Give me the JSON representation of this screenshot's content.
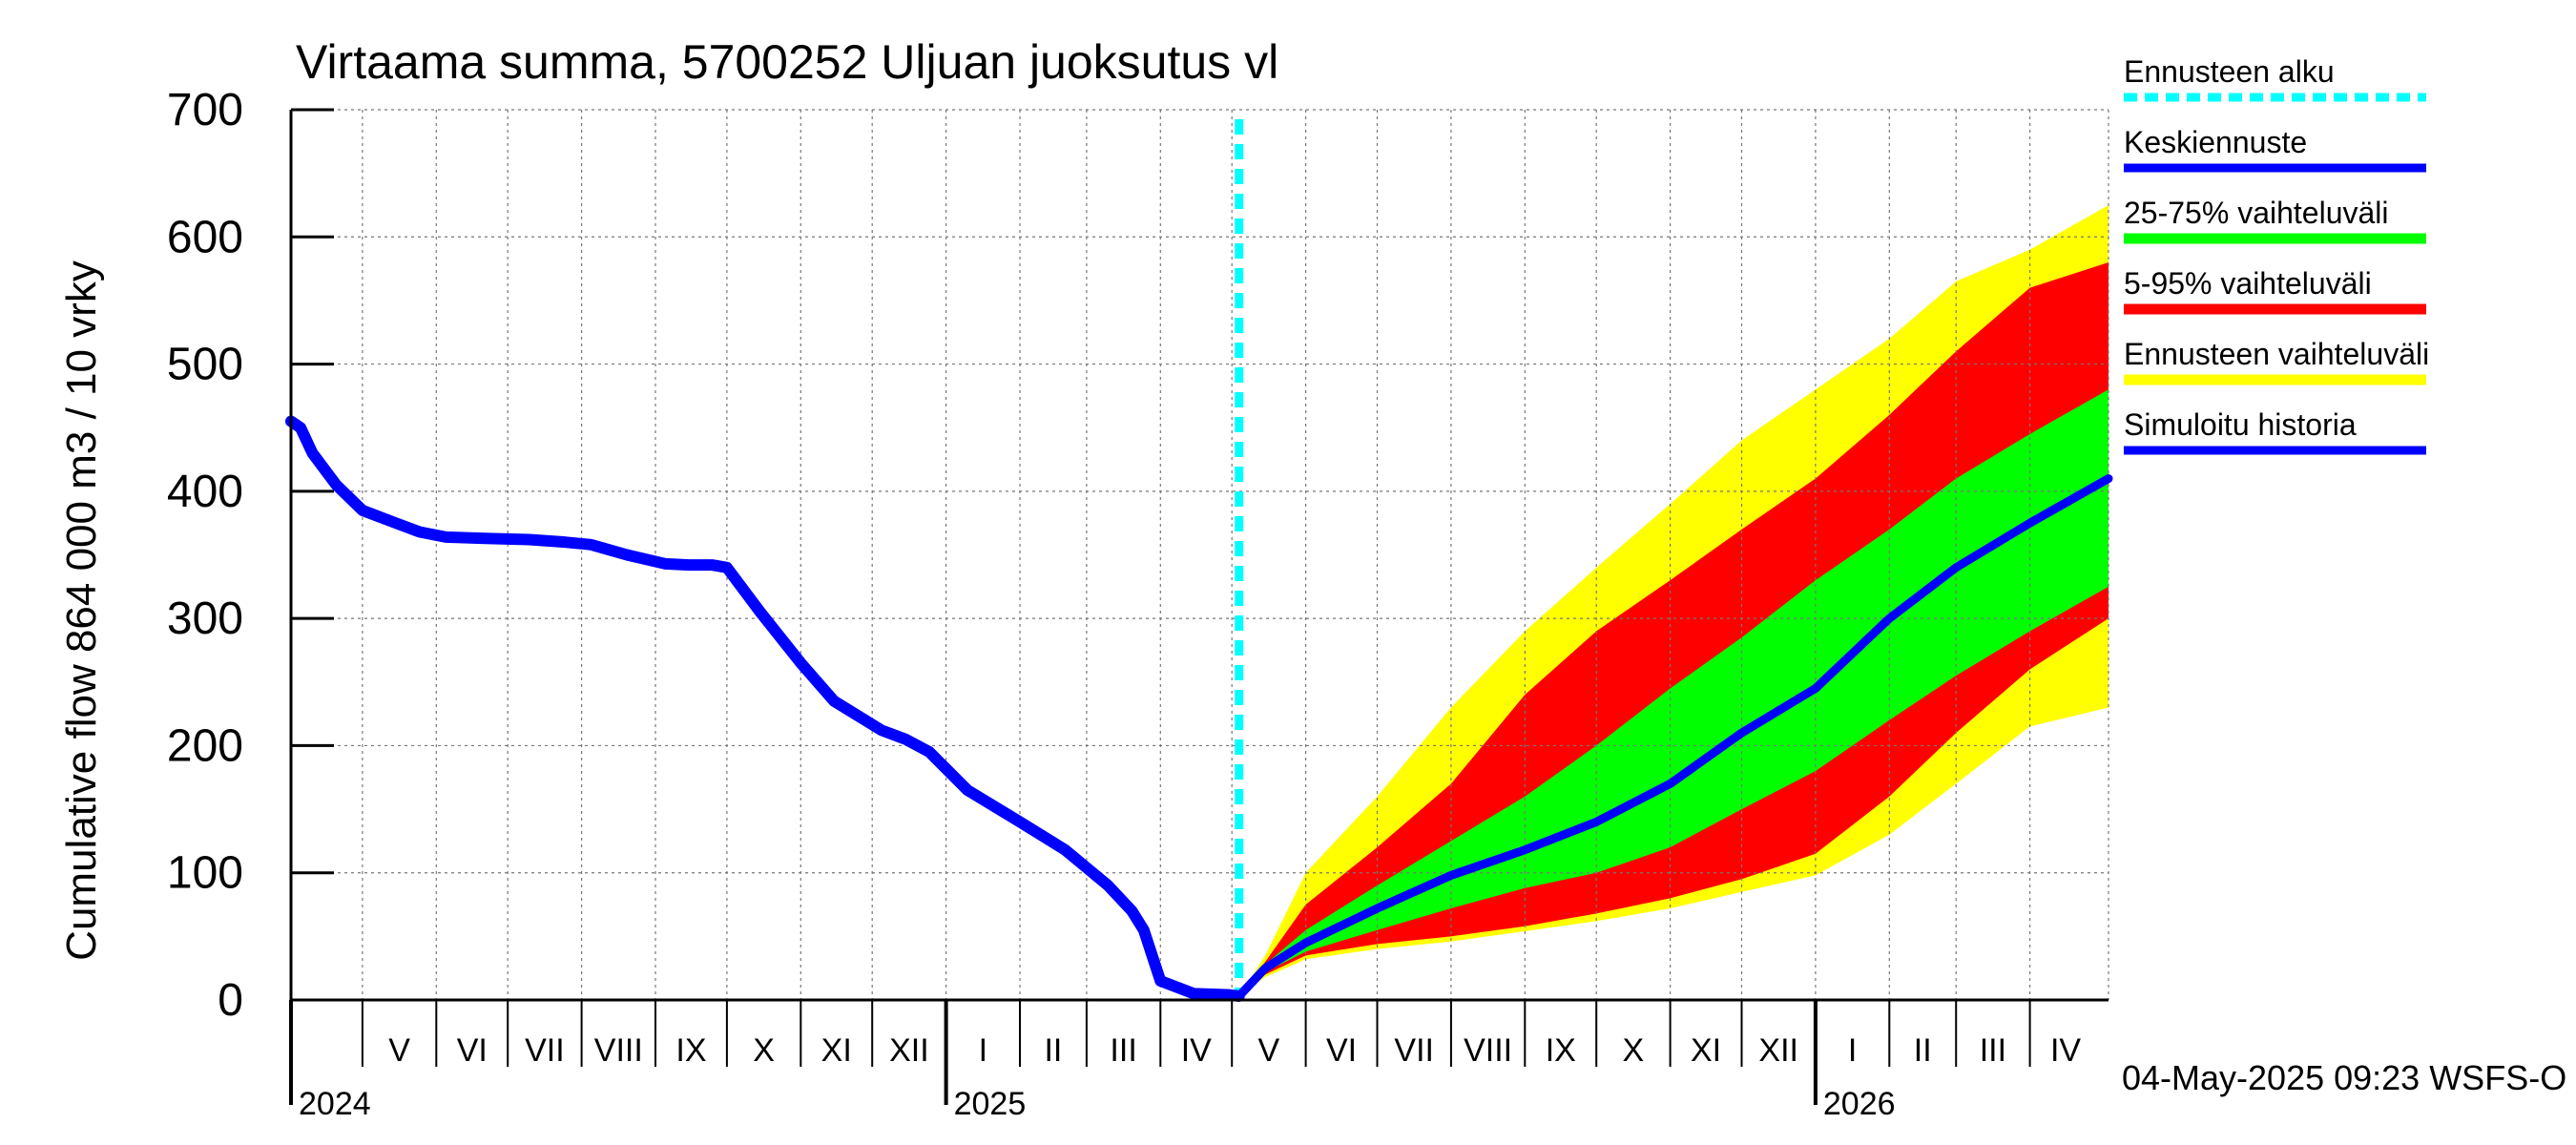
{
  "chart_data": {
    "type": "area",
    "title": "Virtaama summa, 5700252 Uljuan juoksutus vl",
    "ylabel": "Cumulative flow    864 000 m3 / 10 vrky",
    "ylim": [
      0,
      700
    ],
    "yticks": [
      0,
      100,
      200,
      300,
      400,
      500,
      600,
      700
    ],
    "xlim": [
      "2024-04-01",
      "2026-05-04"
    ],
    "grid": true,
    "months": [
      {
        "label": "V",
        "start": "2024-05-01",
        "end": "2024-06-01"
      },
      {
        "label": "VI",
        "start": "2024-06-01",
        "end": "2024-07-01"
      },
      {
        "label": "VII",
        "start": "2024-07-01",
        "end": "2024-08-01"
      },
      {
        "label": "VIII",
        "start": "2024-08-01",
        "end": "2024-09-01"
      },
      {
        "label": "IX",
        "start": "2024-09-01",
        "end": "2024-10-01"
      },
      {
        "label": "X",
        "start": "2024-10-01",
        "end": "2024-11-01"
      },
      {
        "label": "XI",
        "start": "2024-11-01",
        "end": "2024-12-01"
      },
      {
        "label": "XII",
        "start": "2024-12-01",
        "end": "2025-01-01"
      },
      {
        "label": "I",
        "start": "2025-01-01",
        "end": "2025-02-01"
      },
      {
        "label": "II",
        "start": "2025-02-01",
        "end": "2025-03-01"
      },
      {
        "label": "III",
        "start": "2025-03-01",
        "end": "2025-04-01"
      },
      {
        "label": "IV",
        "start": "2025-04-01",
        "end": "2025-05-01"
      },
      {
        "label": "V",
        "start": "2025-05-01",
        "end": "2025-06-01"
      },
      {
        "label": "VI",
        "start": "2025-06-01",
        "end": "2025-07-01"
      },
      {
        "label": "VII",
        "start": "2025-07-01",
        "end": "2025-08-01"
      },
      {
        "label": "VIII",
        "start": "2025-08-01",
        "end": "2025-09-01"
      },
      {
        "label": "IX",
        "start": "2025-09-01",
        "end": "2025-10-01"
      },
      {
        "label": "X",
        "start": "2025-10-01",
        "end": "2025-11-01"
      },
      {
        "label": "XI",
        "start": "2025-11-01",
        "end": "2025-12-01"
      },
      {
        "label": "XII",
        "start": "2025-12-01",
        "end": "2026-01-01"
      },
      {
        "label": "I",
        "start": "2026-01-01",
        "end": "2026-02-01"
      },
      {
        "label": "II",
        "start": "2026-02-01",
        "end": "2026-03-01"
      },
      {
        "label": "III",
        "start": "2026-03-01",
        "end": "2026-04-01"
      },
      {
        "label": "IV",
        "start": "2026-04-01",
        "end": "2026-05-01"
      }
    ],
    "years": [
      {
        "label": "2024",
        "date": "2024-04-01"
      },
      {
        "label": "2025",
        "date": "2025-01-01"
      },
      {
        "label": "2026",
        "date": "2026-01-01"
      }
    ],
    "forecast_start": "2025-05-04",
    "legend_position": "right",
    "legend": [
      {
        "key": "start",
        "label": "Ennusteen alku",
        "color": "#00ffff",
        "style": "dashed"
      },
      {
        "key": "mean",
        "label": "Keskiennuste",
        "color": "#0000ff",
        "style": "line"
      },
      {
        "key": "p25_75",
        "label": "25-75% vaihteluväli",
        "color": "#00ff00",
        "style": "band"
      },
      {
        "key": "p5_95",
        "label": "5-95% vaihteluväli",
        "color": "#ff0000",
        "style": "band"
      },
      {
        "key": "range",
        "label": "Ennusteen vaihteluväli",
        "color": "#ffff00",
        "style": "band"
      },
      {
        "key": "history",
        "label": "Simuloitu historia",
        "color": "#0000ff",
        "style": "line"
      }
    ],
    "footer": "04-May-2025 09:23 WSFS-O",
    "history": {
      "x": [
        "2024-04-01",
        "2024-04-05",
        "2024-04-10",
        "2024-04-20",
        "2024-05-01",
        "2024-05-15",
        "2024-05-25",
        "2024-06-05",
        "2024-06-20",
        "2024-07-10",
        "2024-07-25",
        "2024-08-05",
        "2024-08-20",
        "2024-09-05",
        "2024-09-15",
        "2024-09-25",
        "2024-10-01",
        "2024-10-15",
        "2024-11-01",
        "2024-11-15",
        "2024-12-05",
        "2024-12-15",
        "2024-12-25",
        "2025-01-10",
        "2025-02-01",
        "2025-02-20",
        "2025-03-10",
        "2025-03-20",
        "2025-03-25",
        "2025-04-01",
        "2025-04-15",
        "2025-04-30",
        "2025-05-04"
      ],
      "y": [
        455,
        450,
        430,
        405,
        385,
        375,
        368,
        364,
        363,
        362,
        360,
        358,
        350,
        343,
        342,
        342,
        340,
        305,
        265,
        235,
        212,
        205,
        195,
        165,
        140,
        118,
        90,
        70,
        55,
        15,
        5,
        4,
        3
      ]
    },
    "forecast": {
      "x": [
        "2025-05-04",
        "2025-05-15",
        "2025-06-01",
        "2025-07-01",
        "2025-08-01",
        "2025-09-01",
        "2025-10-01",
        "2025-11-01",
        "2025-12-01",
        "2026-01-01",
        "2026-02-01",
        "2026-03-01",
        "2026-04-01",
        "2026-05-04"
      ],
      "mean": [
        3,
        25,
        45,
        72,
        98,
        118,
        140,
        170,
        210,
        245,
        300,
        340,
        375,
        410
      ],
      "p25": [
        3,
        22,
        38,
        55,
        72,
        88,
        100,
        120,
        150,
        180,
        220,
        255,
        290,
        325
      ],
      "p75": [
        3,
        28,
        55,
        90,
        125,
        160,
        200,
        245,
        285,
        330,
        370,
        410,
        445,
        480
      ],
      "p5": [
        3,
        20,
        35,
        44,
        50,
        58,
        68,
        80,
        95,
        115,
        160,
        210,
        260,
        300
      ],
      "p95": [
        3,
        30,
        75,
        120,
        170,
        240,
        290,
        330,
        370,
        410,
        460,
        510,
        560,
        580
      ],
      "min": [
        3,
        18,
        32,
        40,
        46,
        54,
        62,
        72,
        85,
        98,
        130,
        170,
        215,
        230
      ],
      "max": [
        3,
        35,
        100,
        160,
        230,
        290,
        340,
        390,
        440,
        480,
        520,
        565,
        590,
        625
      ]
    }
  }
}
